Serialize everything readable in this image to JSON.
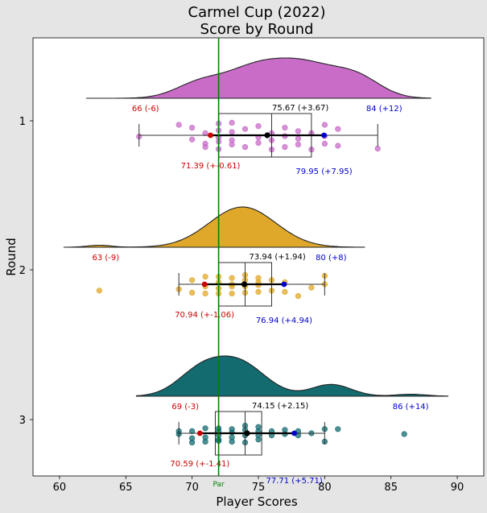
{
  "chart_data": {
    "type": "raincloud",
    "title": "Carmel Cup (2022)",
    "subtitle": "Score by Round",
    "xlabel": "Player Scores",
    "ylabel": "Round",
    "xlim": [
      58,
      92
    ],
    "x_ticks": [
      60,
      65,
      70,
      75,
      80,
      85,
      90
    ],
    "grid": false,
    "par": {
      "value": 72,
      "label": "Par",
      "color": "#008000"
    },
    "colors": {
      "low": "#cc0000",
      "high": "#0000cc",
      "mean": "#000000",
      "background": "#e5e5e5",
      "plot_bg": "#ffffff"
    },
    "series": [
      {
        "name": "1",
        "color": "#c86cc8",
        "min": 66,
        "q1": 72,
        "median": 76,
        "q3": 79,
        "max": 84,
        "mean": 75.67,
        "mean_label": "75.67 (+3.67)",
        "low_sd": 71.39,
        "low_sd_label": "71.39 (+-0.61)",
        "high_sd": 79.95,
        "high_sd_label": "79.95 (+7.95)",
        "min_label": "66 (-6)",
        "max_label": "84 (+12)",
        "density_range": [
          62,
          88
        ],
        "density_peaks": [
          [
            70.5,
            1.8,
            0.35
          ],
          [
            74.5,
            2.2,
            0.65
          ],
          [
            78.5,
            2.4,
            0.8
          ],
          [
            82.5,
            1.8,
            0.45
          ]
        ],
        "scores": [
          66,
          69,
          70,
          70,
          71,
          71,
          71,
          72,
          72,
          72,
          72,
          72,
          73,
          73,
          73,
          73,
          74,
          74,
          75,
          75,
          75,
          76,
          76,
          76,
          77,
          77,
          77,
          78,
          78,
          78,
          79,
          79,
          80,
          80,
          80,
          81,
          81,
          84
        ],
        "jitter": [
          0.03,
          -0.25,
          0.1,
          -0.18,
          0.2,
          -0.05,
          0.28,
          0.33,
          0.15,
          -0.12,
          0.05,
          -0.28,
          0.22,
          -0.08,
          0.12,
          -0.3,
          0.28,
          -0.15,
          0.05,
          -0.22,
          0.18,
          0.34,
          -0.05,
          0.12,
          0.28,
          -0.18,
          0.02,
          0.22,
          -0.1,
          0.08,
          0.34,
          -0.05,
          0.2,
          -0.25,
          0.02,
          0.25,
          -0.15,
          0.32
        ]
      },
      {
        "name": "2",
        "color": "#e0a82a",
        "min": 69,
        "q1": 72,
        "median": 74,
        "q3": 76,
        "max": 80,
        "mean": 73.94,
        "mean_label": "73.94 (+1.94)",
        "low_sd": 70.94,
        "low_sd_label": "70.94 (+-1.06)",
        "high_sd": 76.94,
        "high_sd_label": "76.94 (+4.94)",
        "min_label": "63 (-9)",
        "max_label": "80 (+8)",
        "density_range": [
          60.3,
          83
        ],
        "density_peaks": [
          [
            63,
            0.9,
            0.05
          ],
          [
            73.8,
            2.5,
            1.0
          ]
        ],
        "scores": [
          63,
          69,
          70,
          70,
          71,
          71,
          71,
          72,
          72,
          72,
          72,
          73,
          73,
          73,
          73,
          74,
          74,
          74,
          74,
          75,
          75,
          75,
          75,
          76,
          76,
          77,
          77,
          78,
          79,
          80,
          80
        ],
        "jitter": [
          0.15,
          0.12,
          0.2,
          -0.1,
          0.22,
          0.05,
          -0.18,
          0.22,
          0.1,
          -0.05,
          -0.18,
          0.22,
          0.05,
          0.0,
          -0.15,
          0.2,
          0.05,
          -0.1,
          -0.22,
          0.18,
          0.02,
          -0.05,
          -0.15,
          0.15,
          -0.1,
          0.18,
          -0.05,
          0.28,
          0.08,
          0.0,
          -0.2
        ],
        "outlier_index": 0
      },
      {
        "name": "3",
        "color": "#136b70",
        "min": 69,
        "q1": 71.75,
        "median": 74,
        "q3": 75.25,
        "max": 80,
        "mean": 74.15,
        "mean_label": "74.15 (+2.15)",
        "low_sd": 70.59,
        "low_sd_label": "70.59 (+-1.41)",
        "high_sd": 77.71,
        "high_sd_label": "77.71 (+5.71)",
        "min_label": "69 (-3)",
        "max_label": "86 (+14)",
        "density_range": [
          65.8,
          89.3
        ],
        "density_peaks": [
          [
            70.5,
            1.7,
            0.55
          ],
          [
            73.5,
            2.0,
            0.85
          ],
          [
            80.5,
            1.5,
            0.3
          ],
          [
            86.5,
            1.2,
            0.05
          ]
        ],
        "scores": [
          69,
          69,
          70,
          70,
          70,
          71,
          71,
          71,
          72,
          72,
          72,
          72,
          72,
          73,
          73,
          73,
          73,
          74,
          74,
          74,
          74,
          75,
          75,
          75,
          75,
          76,
          76,
          77,
          77,
          78,
          78,
          79,
          80,
          80,
          81,
          86
        ],
        "jitter": [
          0.02,
          -0.05,
          0.22,
          0.12,
          -0.05,
          0.2,
          0.1,
          -0.12,
          0.18,
          0.05,
          -0.05,
          -0.12,
          0.15,
          0.2,
          0.1,
          -0.02,
          -0.1,
          0.22,
          0.05,
          -0.08,
          -0.18,
          0.15,
          0.05,
          -0.05,
          -0.15,
          0.05,
          -0.05,
          0.02,
          -0.08,
          0.05,
          -0.05,
          0.0,
          0.2,
          -0.1,
          -0.1,
          0.02
        ],
        "outlier_index": 35
      }
    ]
  }
}
